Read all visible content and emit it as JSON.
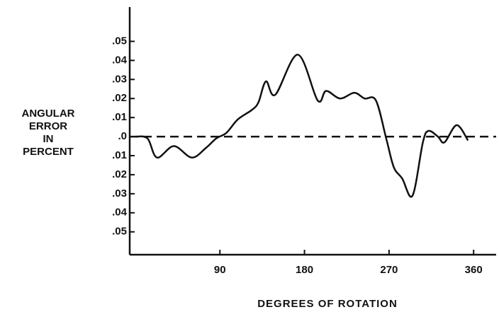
{
  "chart_data": {
    "type": "line",
    "xlabel": "DEGREES OF ROTATION",
    "ylabel": [
      "ANGULAR",
      "ERROR",
      "IN",
      "PERCENT"
    ],
    "xlim": [
      -6,
      384
    ],
    "ylim": [
      -0.062,
      0.068
    ],
    "xticks": [
      90,
      180,
      270,
      360
    ],
    "yticks": [
      {
        "value": 0.05,
        "label": ".05"
      },
      {
        "value": 0.04,
        "label": ".04"
      },
      {
        "value": 0.03,
        "label": ".03"
      },
      {
        "value": 0.02,
        "label": ".02"
      },
      {
        "value": 0.01,
        "label": ".01"
      },
      {
        "value": 0,
        "label": ".0"
      },
      {
        "value": -0.01,
        "label": ".01"
      },
      {
        "value": -0.02,
        "label": ".02"
      },
      {
        "value": -0.03,
        "label": ".03"
      },
      {
        "value": -0.04,
        "label": ".04"
      },
      {
        "value": -0.05,
        "label": ".05"
      }
    ],
    "color": "#111111",
    "x": [
      0,
      13,
      23,
      41,
      60,
      75,
      86,
      97,
      109,
      124,
      131,
      139,
      149,
      173,
      194,
      203,
      218,
      233,
      244,
      256,
      267,
      275,
      284,
      295,
      306,
      312,
      322,
      329,
      342,
      354
    ],
    "values": [
      0,
      -0.001,
      -0.011,
      -0.005,
      -0.011,
      -0.006,
      -0.001,
      0.002,
      0.009,
      0.014,
      0.018,
      0.029,
      0.022,
      0.043,
      0.019,
      0.024,
      0.02,
      0.023,
      0.02,
      0.019,
      -0.001,
      -0.016,
      -0.022,
      -0.031,
      -0.003,
      0.003,
      0,
      -0.003,
      0.006,
      -0.002
    ]
  }
}
